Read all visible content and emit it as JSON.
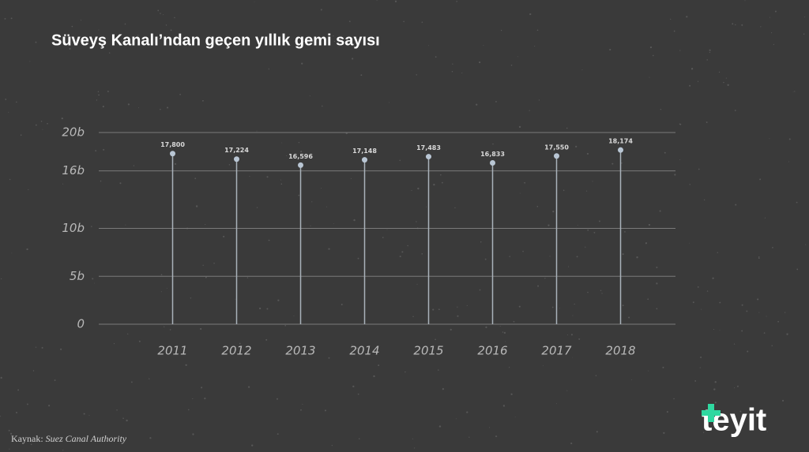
{
  "chart_data": {
    "type": "lollipop",
    "title": "Süveyş Kanalı’ndan geçen yıllık gemi sayısı",
    "categories": [
      "2011",
      "2012",
      "2013",
      "2014",
      "2015",
      "2016",
      "2017",
      "2018"
    ],
    "values": [
      17800,
      17224,
      16596,
      17148,
      17483,
      16833,
      17550,
      18174
    ],
    "value_labels": [
      "17,800",
      "17,224",
      "16,596",
      "17,148",
      "17,483",
      "16,833",
      "17,550",
      "18,174"
    ],
    "color": "#b9c6d4",
    "ylim": [
      0,
      20000
    ],
    "yticks": [
      0,
      {
        "value": 5000,
        "label": "5b"
      },
      {
        "value": 10000,
        "label": "10b"
      },
      {
        "value": 16000,
        "label": "16b"
      },
      {
        "value": 20000,
        "label": "20b"
      }
    ],
    "grid": true
  },
  "footer": {
    "source_label": "Kaynak:",
    "source": "Suez Canal Authority",
    "logo": "teyit"
  }
}
